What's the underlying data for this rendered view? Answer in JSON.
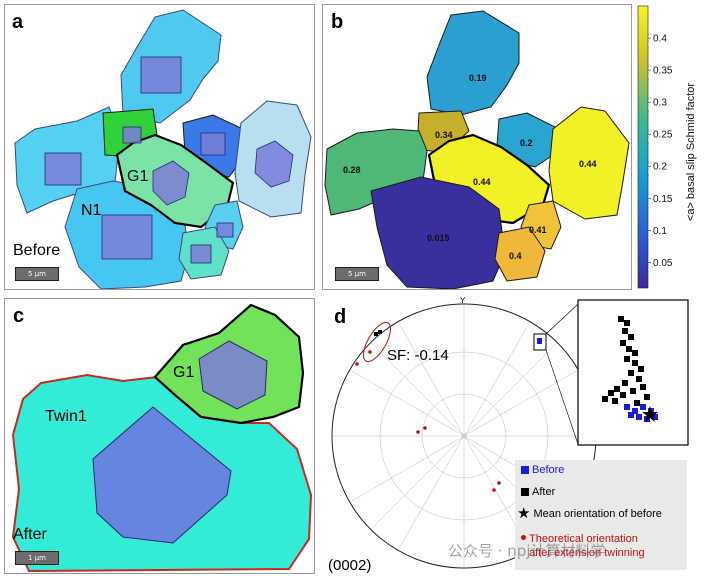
{
  "panels": {
    "a": {
      "label": "a",
      "grain_g1": "G1",
      "grain_n1": "N1",
      "state": "Before",
      "scale": "5 μm"
    },
    "b": {
      "label": "b",
      "scale": "5 μm",
      "grain_values": [
        "0.19",
        "0.34",
        "0.2",
        "0.28",
        "0.44",
        "0.44",
        "0.015",
        "0.41",
        "0.4"
      ]
    },
    "c": {
      "label": "c",
      "grain_g1": "G1",
      "grain_twin": "Twin1",
      "state": "After",
      "scale": "1 μm"
    },
    "d": {
      "label": "d",
      "sf": "SF: -0.14",
      "pole": "(0002)",
      "y_axis": "Y"
    }
  },
  "colorbar": {
    "label": "<a> basal slip Schmid factor",
    "ticks": [
      "0.4",
      "0.35",
      "0.3",
      "0.25",
      "0.2",
      "0.15",
      "0.1",
      "0.05"
    ],
    "tick_values": [
      0.4,
      0.35,
      0.3,
      0.25,
      0.2,
      0.15,
      0.1,
      0.05
    ],
    "range": [
      0.01,
      0.45
    ]
  },
  "legend": {
    "before": "Before",
    "after": "After",
    "mean": "Mean orientation of before",
    "theory_line1": "Theoretical orientation",
    "theory_line2": "after extension twinning"
  },
  "watermark": "公众号 · npj计算材料学",
  "colors": {
    "before": "#1a1ae0",
    "after": "#000000",
    "theory": "#c01010",
    "twin_boundary": "#c8281e"
  }
}
